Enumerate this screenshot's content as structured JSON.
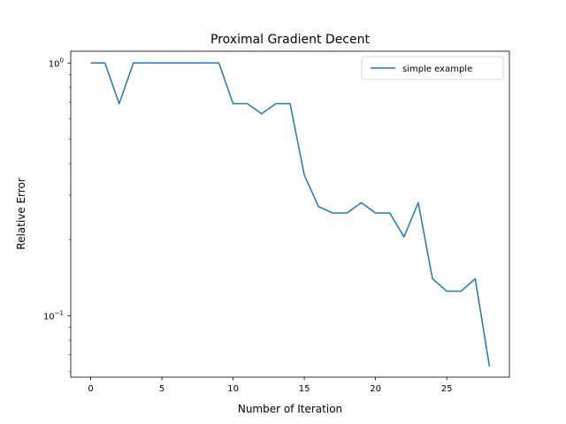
{
  "chart_data": {
    "type": "line",
    "title": "Proximal Gradient Decent",
    "xlabel": "Number of Iteration",
    "ylabel": "Relative Error",
    "yscale": "log",
    "xlim": [
      -1.4,
      29.4
    ],
    "ylim": [
      0.0571,
      1.113
    ],
    "xticks": [
      0,
      5,
      10,
      15,
      20,
      25
    ],
    "yticks": [
      {
        "value": 1,
        "label_base": "10",
        "label_exp": "0"
      },
      {
        "value": 0.1,
        "label_base": "10",
        "label_exp": "−1"
      }
    ],
    "grid": false,
    "legend": "top-right",
    "series": [
      {
        "name": "simple example",
        "color": "#1f77b4",
        "x": [
          0,
          1,
          2,
          3,
          4,
          5,
          6,
          7,
          8,
          9,
          10,
          11,
          12,
          13,
          14,
          15,
          16,
          17,
          18,
          19,
          20,
          21,
          22,
          23,
          24,
          25,
          26,
          27,
          28
        ],
        "y": [
          1.0,
          1.0,
          0.69,
          1.0,
          1.0,
          1.0,
          1.0,
          1.0,
          1.0,
          1.0,
          0.69,
          0.69,
          0.63,
          0.69,
          0.69,
          0.36,
          0.27,
          0.255,
          0.255,
          0.28,
          0.255,
          0.255,
          0.205,
          0.28,
          0.14,
          0.125,
          0.125,
          0.14,
          0.063
        ]
      }
    ]
  }
}
